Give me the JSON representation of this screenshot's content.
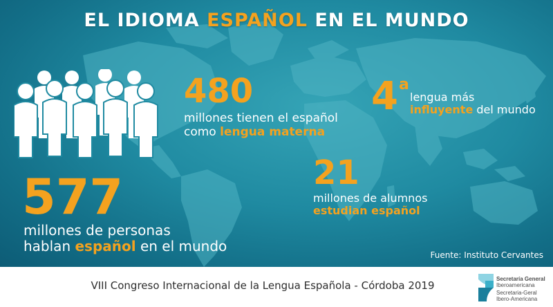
{
  "title": {
    "part1": "EL IDIOMA ",
    "highlight": "ESPAÑOL",
    "part2": " EN EL MUNDO"
  },
  "stats": {
    "native": {
      "number": "480",
      "line1": "millones tienen el español",
      "line2_pre": "como ",
      "line2_hl": "lengua materna"
    },
    "ranking": {
      "number": "4",
      "superscript": "a",
      "line1": "lengua más",
      "line2_hl": "influyente",
      "line2_post": " del mundo"
    },
    "students": {
      "number": "21",
      "line1": "millones de alumnos",
      "line2_hl": "estudian español"
    },
    "speakers": {
      "number": "577",
      "line1": "millones de personas",
      "line2_pre": "hablan ",
      "line2_hl": "español",
      "line2_post": " en el mundo"
    }
  },
  "source": "Fuente: Instituto Cervantes",
  "footer": {
    "text": "VIII Congreso Internacional de la Lengua Española - Córdoba 2019",
    "logo": {
      "line1": "Secretaría General",
      "line2": "Iberoamericana",
      "line3": "Secretaria-Geral",
      "line4": "Ibero-Americana"
    }
  },
  "icons": {
    "people": "people-group-icon",
    "map": "world-map-icon",
    "logo": "segib-logo-icon"
  },
  "colors": {
    "accent": "#f4a21f",
    "background": "#1f8aa1",
    "text": "#ffffff",
    "footer_text": "#2d2d2d"
  }
}
